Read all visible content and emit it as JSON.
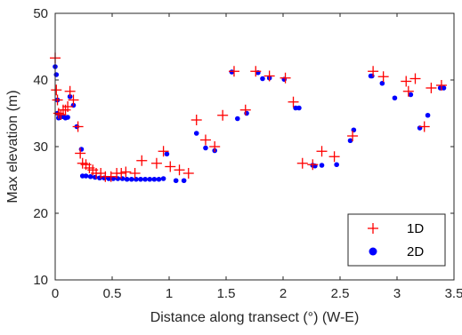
{
  "chart_data": {
    "type": "scatter",
    "title": "",
    "xlabel": "Distance along transect (°) (W-E)",
    "ylabel": "Max elevation (m)",
    "xlim": [
      0,
      3.5
    ],
    "ylim": [
      10,
      50
    ],
    "xticks": [
      0,
      0.5,
      1,
      1.5,
      2,
      2.5,
      3,
      3.5
    ],
    "xtick_labels": [
      "0",
      "0.5",
      "1",
      "1.5",
      "2",
      "2.5",
      "3",
      "3.5"
    ],
    "yticks": [
      10,
      20,
      30,
      40,
      50
    ],
    "ytick_labels": [
      "10",
      "20",
      "30",
      "40",
      "50"
    ],
    "grid": false,
    "legend_position": "bottom-right",
    "series": [
      {
        "name": "1D",
        "marker": "plus",
        "color": "#ff0000",
        "points": [
          [
            0.0,
            43.3
          ],
          [
            0.01,
            38.5
          ],
          [
            0.02,
            37.0
          ],
          [
            0.03,
            35.0
          ],
          [
            0.05,
            34.8
          ],
          [
            0.07,
            35.5
          ],
          [
            0.09,
            35.5
          ],
          [
            0.11,
            36.0
          ],
          [
            0.13,
            38.3
          ],
          [
            0.16,
            37.0
          ],
          [
            0.2,
            33.0
          ],
          [
            0.22,
            29.0
          ],
          [
            0.24,
            27.5
          ],
          [
            0.27,
            27.3
          ],
          [
            0.3,
            26.8
          ],
          [
            0.33,
            26.5
          ],
          [
            0.36,
            26.0
          ],
          [
            0.4,
            26.0
          ],
          [
            0.44,
            25.5
          ],
          [
            0.49,
            25.5
          ],
          [
            0.54,
            26.0
          ],
          [
            0.58,
            26.0
          ],
          [
            0.62,
            26.2
          ],
          [
            0.7,
            26.0
          ],
          [
            0.76,
            27.9
          ],
          [
            0.89,
            27.5
          ],
          [
            0.95,
            29.3
          ],
          [
            1.01,
            27.0
          ],
          [
            1.09,
            26.5
          ],
          [
            1.17,
            26.0
          ],
          [
            1.24,
            34.0
          ],
          [
            1.32,
            31.0
          ],
          [
            1.4,
            30.0
          ],
          [
            1.47,
            34.7
          ],
          [
            1.57,
            41.3
          ],
          [
            1.67,
            35.5
          ],
          [
            1.76,
            41.3
          ],
          [
            1.88,
            40.6
          ],
          [
            2.02,
            40.3
          ],
          [
            2.09,
            36.7
          ],
          [
            2.17,
            27.5
          ],
          [
            2.26,
            27.3
          ],
          [
            2.34,
            29.3
          ],
          [
            2.45,
            28.5
          ],
          [
            2.61,
            31.6
          ],
          [
            2.79,
            41.3
          ],
          [
            2.88,
            40.5
          ],
          [
            3.08,
            39.8
          ],
          [
            3.1,
            38.3
          ],
          [
            3.16,
            40.2
          ],
          [
            3.24,
            33.0
          ],
          [
            3.3,
            38.8
          ],
          [
            3.39,
            39.2
          ]
        ]
      },
      {
        "name": "2D",
        "marker": "dot",
        "color": "#0000ff",
        "points": [
          [
            0.0,
            42.0
          ],
          [
            0.01,
            40.8
          ],
          [
            0.02,
            37.0
          ],
          [
            0.02,
            35.0
          ],
          [
            0.03,
            34.3
          ],
          [
            0.05,
            34.5
          ],
          [
            0.07,
            34.5
          ],
          [
            0.09,
            34.3
          ],
          [
            0.11,
            34.4
          ],
          [
            0.13,
            37.5
          ],
          [
            0.16,
            36.2
          ],
          [
            0.19,
            33.0
          ],
          [
            0.23,
            29.6
          ],
          [
            0.24,
            25.6
          ],
          [
            0.27,
            25.6
          ],
          [
            0.31,
            25.5
          ],
          [
            0.35,
            25.4
          ],
          [
            0.39,
            25.3
          ],
          [
            0.43,
            25.3
          ],
          [
            0.47,
            25.2
          ],
          [
            0.51,
            25.2
          ],
          [
            0.55,
            25.2
          ],
          [
            0.59,
            25.2
          ],
          [
            0.63,
            25.1
          ],
          [
            0.67,
            25.1
          ],
          [
            0.71,
            25.1
          ],
          [
            0.75,
            25.1
          ],
          [
            0.79,
            25.1
          ],
          [
            0.83,
            25.1
          ],
          [
            0.87,
            25.1
          ],
          [
            0.91,
            25.1
          ],
          [
            0.95,
            25.2
          ],
          [
            0.98,
            28.9
          ],
          [
            1.06,
            24.9
          ],
          [
            1.13,
            24.9
          ],
          [
            1.24,
            32.0
          ],
          [
            1.32,
            29.8
          ],
          [
            1.4,
            29.4
          ],
          [
            1.55,
            41.2
          ],
          [
            1.6,
            34.2
          ],
          [
            1.68,
            35.0
          ],
          [
            1.78,
            41.1
          ],
          [
            1.82,
            40.2
          ],
          [
            1.88,
            40.3
          ],
          [
            2.01,
            40.1
          ],
          [
            2.11,
            35.8
          ],
          [
            2.14,
            35.8
          ],
          [
            2.26,
            27.2
          ],
          [
            2.28,
            27.1
          ],
          [
            2.34,
            27.2
          ],
          [
            2.47,
            27.3
          ],
          [
            2.59,
            30.9
          ],
          [
            2.62,
            32.5
          ],
          [
            2.77,
            40.6
          ],
          [
            2.78,
            40.6
          ],
          [
            2.87,
            39.5
          ],
          [
            2.98,
            37.3
          ],
          [
            3.12,
            37.8
          ],
          [
            3.2,
            32.8
          ],
          [
            3.27,
            34.7
          ],
          [
            3.38,
            38.8
          ],
          [
            3.41,
            38.8
          ]
        ]
      }
    ]
  }
}
